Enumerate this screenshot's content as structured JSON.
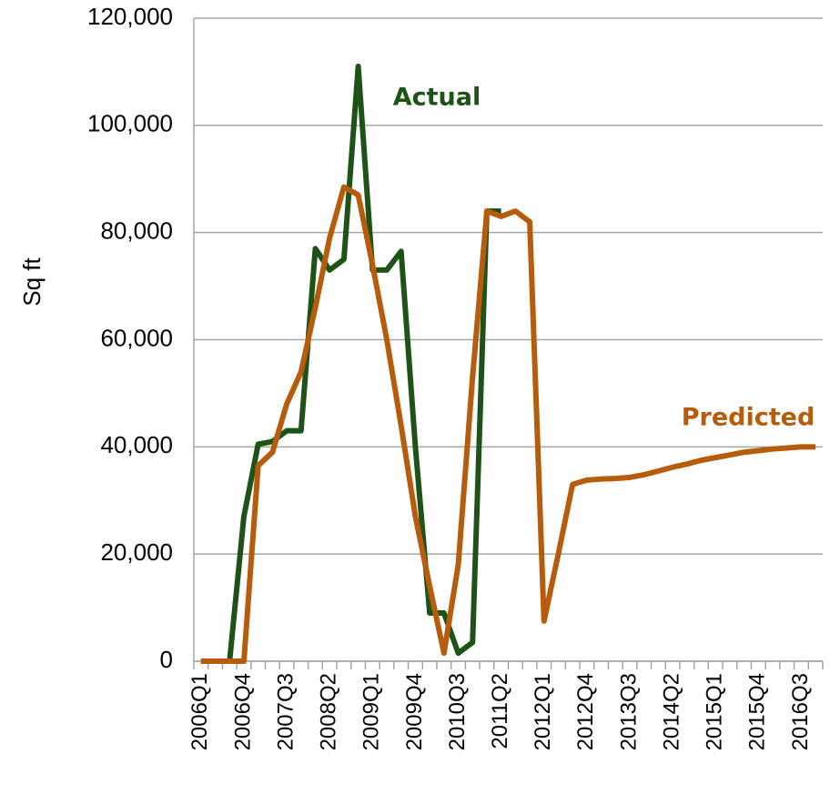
{
  "chart_data": {
    "type": "line",
    "y_label": "Sq ft",
    "annotations": [
      {
        "text": "Actual",
        "series": 0
      },
      {
        "text": "Predicted",
        "series": 1
      }
    ],
    "categories": [
      "2006Q1",
      null,
      null,
      "2006Q4",
      null,
      null,
      "2007Q3",
      null,
      null,
      "2008Q2",
      null,
      null,
      "2009Q1",
      null,
      null,
      "2009Q4",
      null,
      null,
      "2010Q3",
      null,
      null,
      "2011Q2",
      null,
      null,
      "2012Q1",
      null,
      null,
      "2012Q4",
      null,
      null,
      "2013Q3",
      null,
      null,
      "2014Q2",
      null,
      null,
      "2015Q1",
      null,
      null,
      "2015Q4",
      null,
      null,
      "2016Q3",
      null
    ],
    "series": [
      {
        "name": "Actual",
        "color": "#1e5318",
        "values": [
          0,
          0,
          0,
          27000,
          40500,
          41000,
          43000,
          43000,
          77000,
          73000,
          75000,
          111000,
          73000,
          73000,
          76500,
          40000,
          9000,
          9000,
          1500,
          3500,
          84000,
          84000,
          null,
          null,
          null,
          null,
          null,
          null,
          null,
          null,
          null,
          null,
          null,
          null,
          null,
          null,
          null,
          null,
          null,
          null,
          null,
          null,
          null,
          null
        ]
      },
      {
        "name": "Predicted",
        "color": "#b65c0c",
        "values": [
          0,
          0,
          0,
          0,
          36500,
          39000,
          48000,
          54000,
          66000,
          79000,
          88500,
          87000,
          74000,
          60000,
          44000,
          27000,
          14000,
          1500,
          18000,
          53000,
          84000,
          83000,
          84000,
          82000,
          7500,
          20000,
          33000,
          33800,
          34000,
          34100,
          34300,
          34800,
          35500,
          36200,
          36800,
          37500,
          38000,
          38500,
          39000,
          39300,
          39600,
          39800,
          40000,
          40000
        ]
      }
    ],
    "ylim": [
      0,
      120000
    ],
    "yticks": [
      0,
      {
        "value": 20000,
        "label": "20,000"
      },
      {
        "value": 40000,
        "label": "40,000"
      },
      {
        "value": 60000,
        "label": "60,000"
      },
      {
        "value": 80000,
        "label": "80,000"
      },
      {
        "value": 100000,
        "label": "100,000"
      },
      {
        "value": 120000,
        "label": "120,000"
      }
    ],
    "grid": true
  }
}
